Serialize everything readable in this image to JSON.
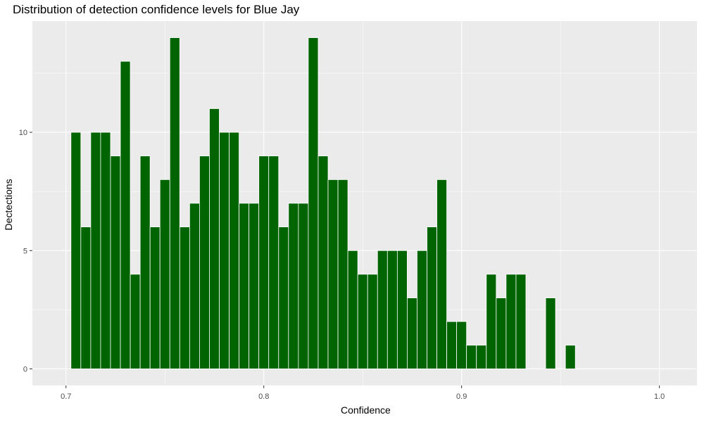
{
  "chart_data": {
    "type": "bar",
    "title": "Distribution of detection confidence levels for Blue Jay",
    "xlabel": "Confidence",
    "ylabel": "Dectections",
    "xlim": [
      0.683,
      1.019
    ],
    "ylim": [
      -0.7,
      14.7
    ],
    "x_ticks": [
      "0.7",
      "0.8",
      "0.9",
      "1.0"
    ],
    "x_tick_values": [
      0.7,
      0.8,
      0.9,
      1.0
    ],
    "y_ticks": [
      "0",
      "5",
      "10"
    ],
    "y_tick_values": [
      0,
      5,
      10
    ],
    "bin_width": 0.005,
    "bins": [
      0.705,
      0.71,
      0.715,
      0.72,
      0.725,
      0.73,
      0.735,
      0.74,
      0.745,
      0.75,
      0.755,
      0.76,
      0.765,
      0.77,
      0.775,
      0.78,
      0.785,
      0.79,
      0.795,
      0.8,
      0.805,
      0.81,
      0.815,
      0.82,
      0.825,
      0.83,
      0.835,
      0.84,
      0.845,
      0.85,
      0.855,
      0.86,
      0.865,
      0.87,
      0.875,
      0.88,
      0.885,
      0.89,
      0.895,
      0.9,
      0.905,
      0.91,
      0.915,
      0.92,
      0.925,
      0.93,
      0.935,
      0.94,
      0.945,
      0.95,
      0.955
    ],
    "values": [
      10,
      6,
      10,
      10,
      9,
      13,
      4,
      9,
      6,
      8,
      14,
      6,
      7,
      9,
      11,
      10,
      10,
      7,
      7,
      9,
      9,
      6,
      7,
      7,
      14,
      9,
      8,
      8,
      5,
      4,
      4,
      5,
      5,
      5,
      3,
      5,
      6,
      8,
      2,
      2,
      1,
      1,
      4,
      3,
      4,
      4,
      0,
      0,
      3,
      0,
      1
    ],
    "bar_color": "#006400",
    "bar_outline": "#ffffff",
    "panel_background": "#ebebeb",
    "grid": true,
    "grid_color": "#ffffff"
  }
}
